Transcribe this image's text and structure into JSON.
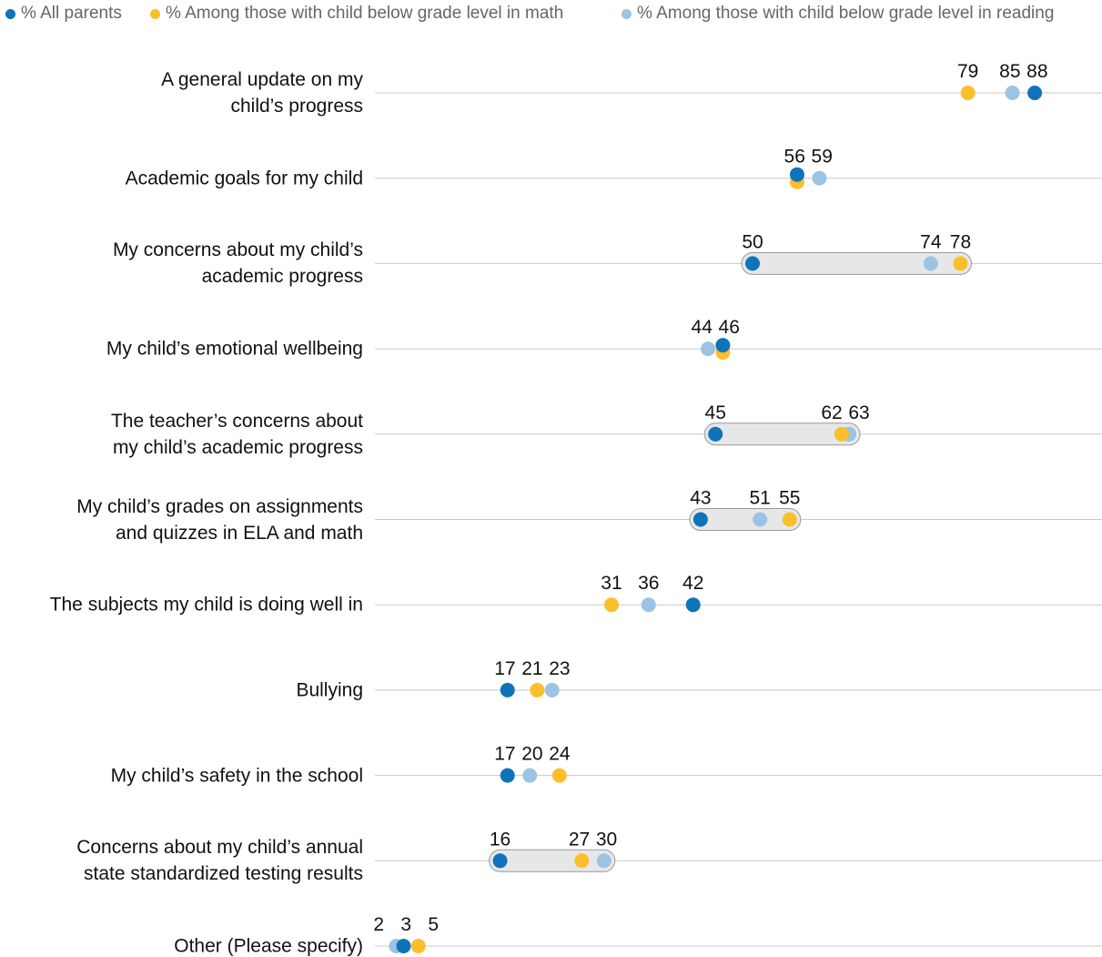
{
  "chart_data": {
    "type": "dot",
    "categories": [
      "A general update on my\nchild’s progress",
      "Academic goals for my child",
      "My concerns about my child’s\nacademic progress",
      "My child’s emotional wellbeing",
      "The teacher’s concerns about\nmy child’s academic progress",
      "My child’s grades on assignments\nand quizzes in ELA and math",
      "The subjects my child is doing well in",
      "Bullying",
      "My child’s safety in the school",
      "Concerns about my child’s annual\nstate standardized testing results",
      "Other (Please specify)"
    ],
    "series": [
      {
        "name": "% All parents",
        "color": "#0f73ba",
        "values": [
          88,
          56,
          50,
          46,
          45,
          43,
          42,
          17,
          17,
          16,
          3
        ]
      },
      {
        "name": "% Among those with child below grade level in math",
        "color": "#fbbf2b",
        "values": [
          79,
          56,
          78,
          46,
          62,
          55,
          31,
          21,
          24,
          27,
          5
        ]
      },
      {
        "name": "% Among those with child below grade level in reading",
        "color": "#9dc3e3",
        "values": [
          85,
          59,
          74,
          44,
          63,
          51,
          36,
          23,
          20,
          30,
          2
        ]
      }
    ],
    "xlim": [
      0,
      100
    ],
    "highlighted_rows": [
      2,
      4,
      5,
      9
    ]
  }
}
